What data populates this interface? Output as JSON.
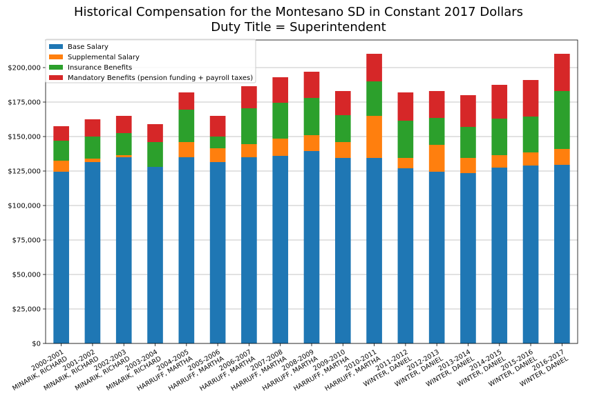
{
  "chart_data": {
    "type": "bar",
    "stacked": true,
    "title": "Historical Compensation for the Montesano SD in Constant 2017 Dollars",
    "subtitle": "Duty Title = Superintendent",
    "xlabel": "",
    "ylabel": "",
    "ylim": [
      0,
      220000
    ],
    "yticks": [
      0,
      25000,
      50000,
      75000,
      100000,
      125000,
      150000,
      175000,
      200000
    ],
    "ytick_labels": [
      "$0",
      "$25,000",
      "$50,000",
      "$75,000",
      "$100,000",
      "$125,000",
      "$150,000",
      "$175,000",
      "$200,000"
    ],
    "grid": "horizontal",
    "legend_position": "top-left",
    "categories": [
      [
        "2000-2001",
        "MINARIK, RICHARD"
      ],
      [
        "2001-2002",
        "MINARIK, RICHARD"
      ],
      [
        "2002-2003",
        "MINARIK, RICHARD"
      ],
      [
        "2003-2004",
        "MINARIK, RICHARD"
      ],
      [
        "2004-2005",
        "HARRUFF, MARTHA"
      ],
      [
        "2005-2006",
        "HARRUFF, MARTHA"
      ],
      [
        "2006-2007",
        "HARRUFF, MARTHA"
      ],
      [
        "2007-2008",
        "HARRUFF, MARTHA"
      ],
      [
        "2008-2009",
        "HARRUFF, MARTHA"
      ],
      [
        "2009-2010",
        "HARRUFF, MARTHA"
      ],
      [
        "2010-2011",
        "HARRUFF, MARTHA"
      ],
      [
        "2011-2012",
        "WINTER, DANIEL"
      ],
      [
        "2012-2013",
        "WINTER, DANIEL"
      ],
      [
        "2013-2014",
        "WINTER, DANIEL"
      ],
      [
        "2014-2015",
        "WINTER, DANIEL"
      ],
      [
        "2015-2016",
        "WINTER, DANIEL"
      ],
      [
        "2016-2017",
        "WINTER, DANIEL"
      ]
    ],
    "series": [
      {
        "name": "Base Salary",
        "color": "#1f77b4",
        "values": [
          124500,
          131500,
          135000,
          128000,
          135000,
          131500,
          135000,
          136000,
          139500,
          134500,
          134500,
          127000,
          124500,
          123500,
          127500,
          129000,
          129500
        ]
      },
      {
        "name": "Supplemental Salary",
        "color": "#ff7f0e",
        "values": [
          8000,
          2500,
          1500,
          0,
          11000,
          10000,
          9500,
          12500,
          11500,
          11500,
          30500,
          7500,
          19500,
          11000,
          9000,
          9500,
          11500
        ]
      },
      {
        "name": "Insurance Benefits",
        "color": "#2ca02c",
        "values": [
          14500,
          16000,
          16000,
          18000,
          23500,
          8500,
          26000,
          26000,
          27000,
          19500,
          25000,
          27000,
          19500,
          22500,
          26500,
          26000,
          42000
        ]
      },
      {
        "name": "Mandatory Benefits (pension funding + payroll taxes)",
        "color": "#d62728",
        "values": [
          10500,
          12500,
          12500,
          13000,
          12500,
          15000,
          16000,
          18500,
          19000,
          17500,
          20000,
          20500,
          19500,
          23000,
          24500,
          26500,
          27000
        ]
      }
    ]
  }
}
